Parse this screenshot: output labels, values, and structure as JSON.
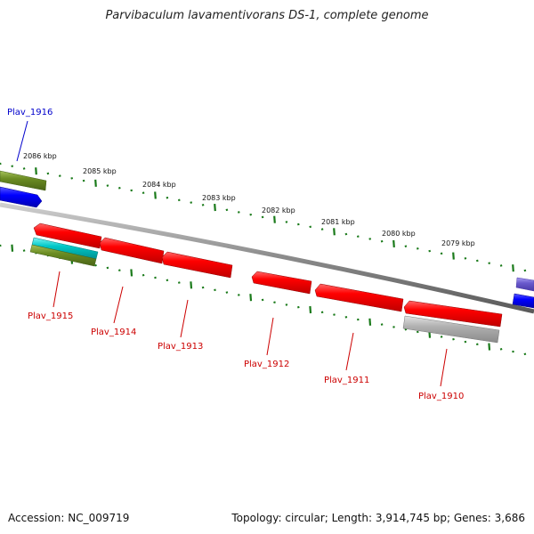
{
  "title": "Parvibaculum lavamentivorans DS-1, complete genome",
  "footer": {
    "accession": "Accession: NC_009719",
    "summary": "Topology: circular; Length: 3,914,745 bp; Genes: 3,686"
  },
  "scale_labels": [
    "2086 kbp",
    "2085 kbp",
    "2084 kbp",
    "2083 kbp",
    "2082 kbp",
    "2081 kbp",
    "2080 kbp",
    "2079 kbp"
  ],
  "gene_labels": {
    "plav_1916": "Plav_1916",
    "plav_1915": "Plav_1915",
    "plav_1914": "Plav_1914",
    "plav_1913": "Plav_1913",
    "plav_1912": "Plav_1912",
    "plav_1911": "Plav_1911",
    "plav_1910": "Plav_1910"
  },
  "colors": {
    "forward_label": "#0000cc",
    "reverse_label": "#cc0000",
    "gene_red": "#e00000",
    "gene_blue": "#0000e0",
    "gene_olive": "#6b8c23",
    "gene_cyan": "#00bfbf",
    "gene_grey": "#a0a0a0",
    "gene_violet": "#6a5acd",
    "ticks": "#1a7a1a",
    "backbone": "#8a8a8a"
  }
}
